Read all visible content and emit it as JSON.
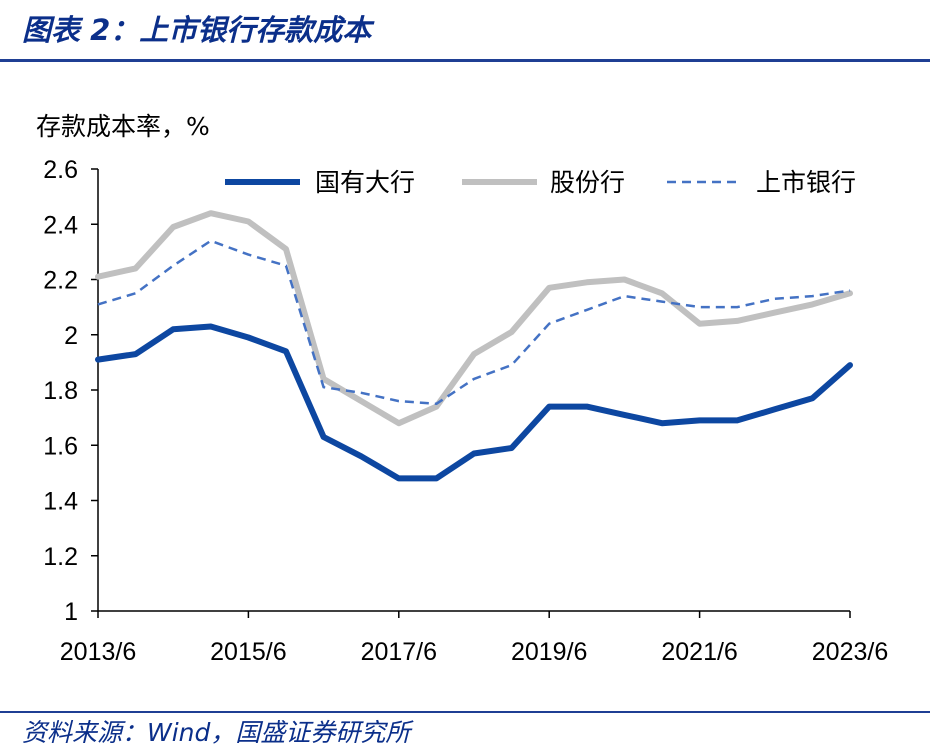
{
  "figure_title": "图表 2：上市银行存款成本",
  "source": "资料来源：Wind，国盛证券研究所",
  "colors": {
    "title": "#0b2f8a",
    "rule": "#1f3f94",
    "state_banks": "#0d47a1",
    "joint_stock": "#c0c0c0",
    "listed": "#4472c4",
    "axis": "#000000"
  },
  "chart_data": {
    "type": "line",
    "ylabel": "存款成本率，%",
    "xlabel": "",
    "ylim": [
      1,
      2.6
    ],
    "yticks": [
      "1",
      "1.2",
      "1.4",
      "1.6",
      "1.8",
      "2",
      "2.2",
      "2.4",
      "2.6"
    ],
    "xticks": [
      "2013/6",
      "2015/6",
      "2017/6",
      "2019/6",
      "2021/6",
      "2023/6"
    ],
    "grid": false,
    "legend_position": "top",
    "x": [
      "2013/6",
      "2013/12",
      "2014/6",
      "2014/12",
      "2015/6",
      "2015/12",
      "2016/6",
      "2016/12",
      "2017/6",
      "2017/12",
      "2018/6",
      "2018/12",
      "2019/6",
      "2019/12",
      "2020/6",
      "2020/12",
      "2021/6",
      "2021/12",
      "2022/6",
      "2022/12",
      "2023/6"
    ],
    "series": [
      {
        "name": "国有大行",
        "style": "solid-thick",
        "values": [
          1.91,
          1.93,
          2.02,
          2.03,
          1.99,
          1.94,
          1.63,
          1.56,
          1.48,
          1.48,
          1.57,
          1.59,
          1.74,
          1.74,
          1.71,
          1.68,
          1.69,
          1.69,
          1.73,
          1.77,
          1.89
        ]
      },
      {
        "name": "股份行",
        "style": "solid-thick",
        "values": [
          2.21,
          2.24,
          2.39,
          2.44,
          2.41,
          2.31,
          1.84,
          1.76,
          1.68,
          1.74,
          1.93,
          2.01,
          2.17,
          2.19,
          2.2,
          2.15,
          2.04,
          2.05,
          2.08,
          2.11,
          2.15
        ]
      },
      {
        "name": "上市银行",
        "style": "dashed",
        "values": [
          2.11,
          2.15,
          2.25,
          2.34,
          2.29,
          2.25,
          1.81,
          1.79,
          1.76,
          1.75,
          1.84,
          1.89,
          2.04,
          2.09,
          2.14,
          2.12,
          2.1,
          2.1,
          2.13,
          2.14,
          2.16
        ]
      }
    ]
  }
}
